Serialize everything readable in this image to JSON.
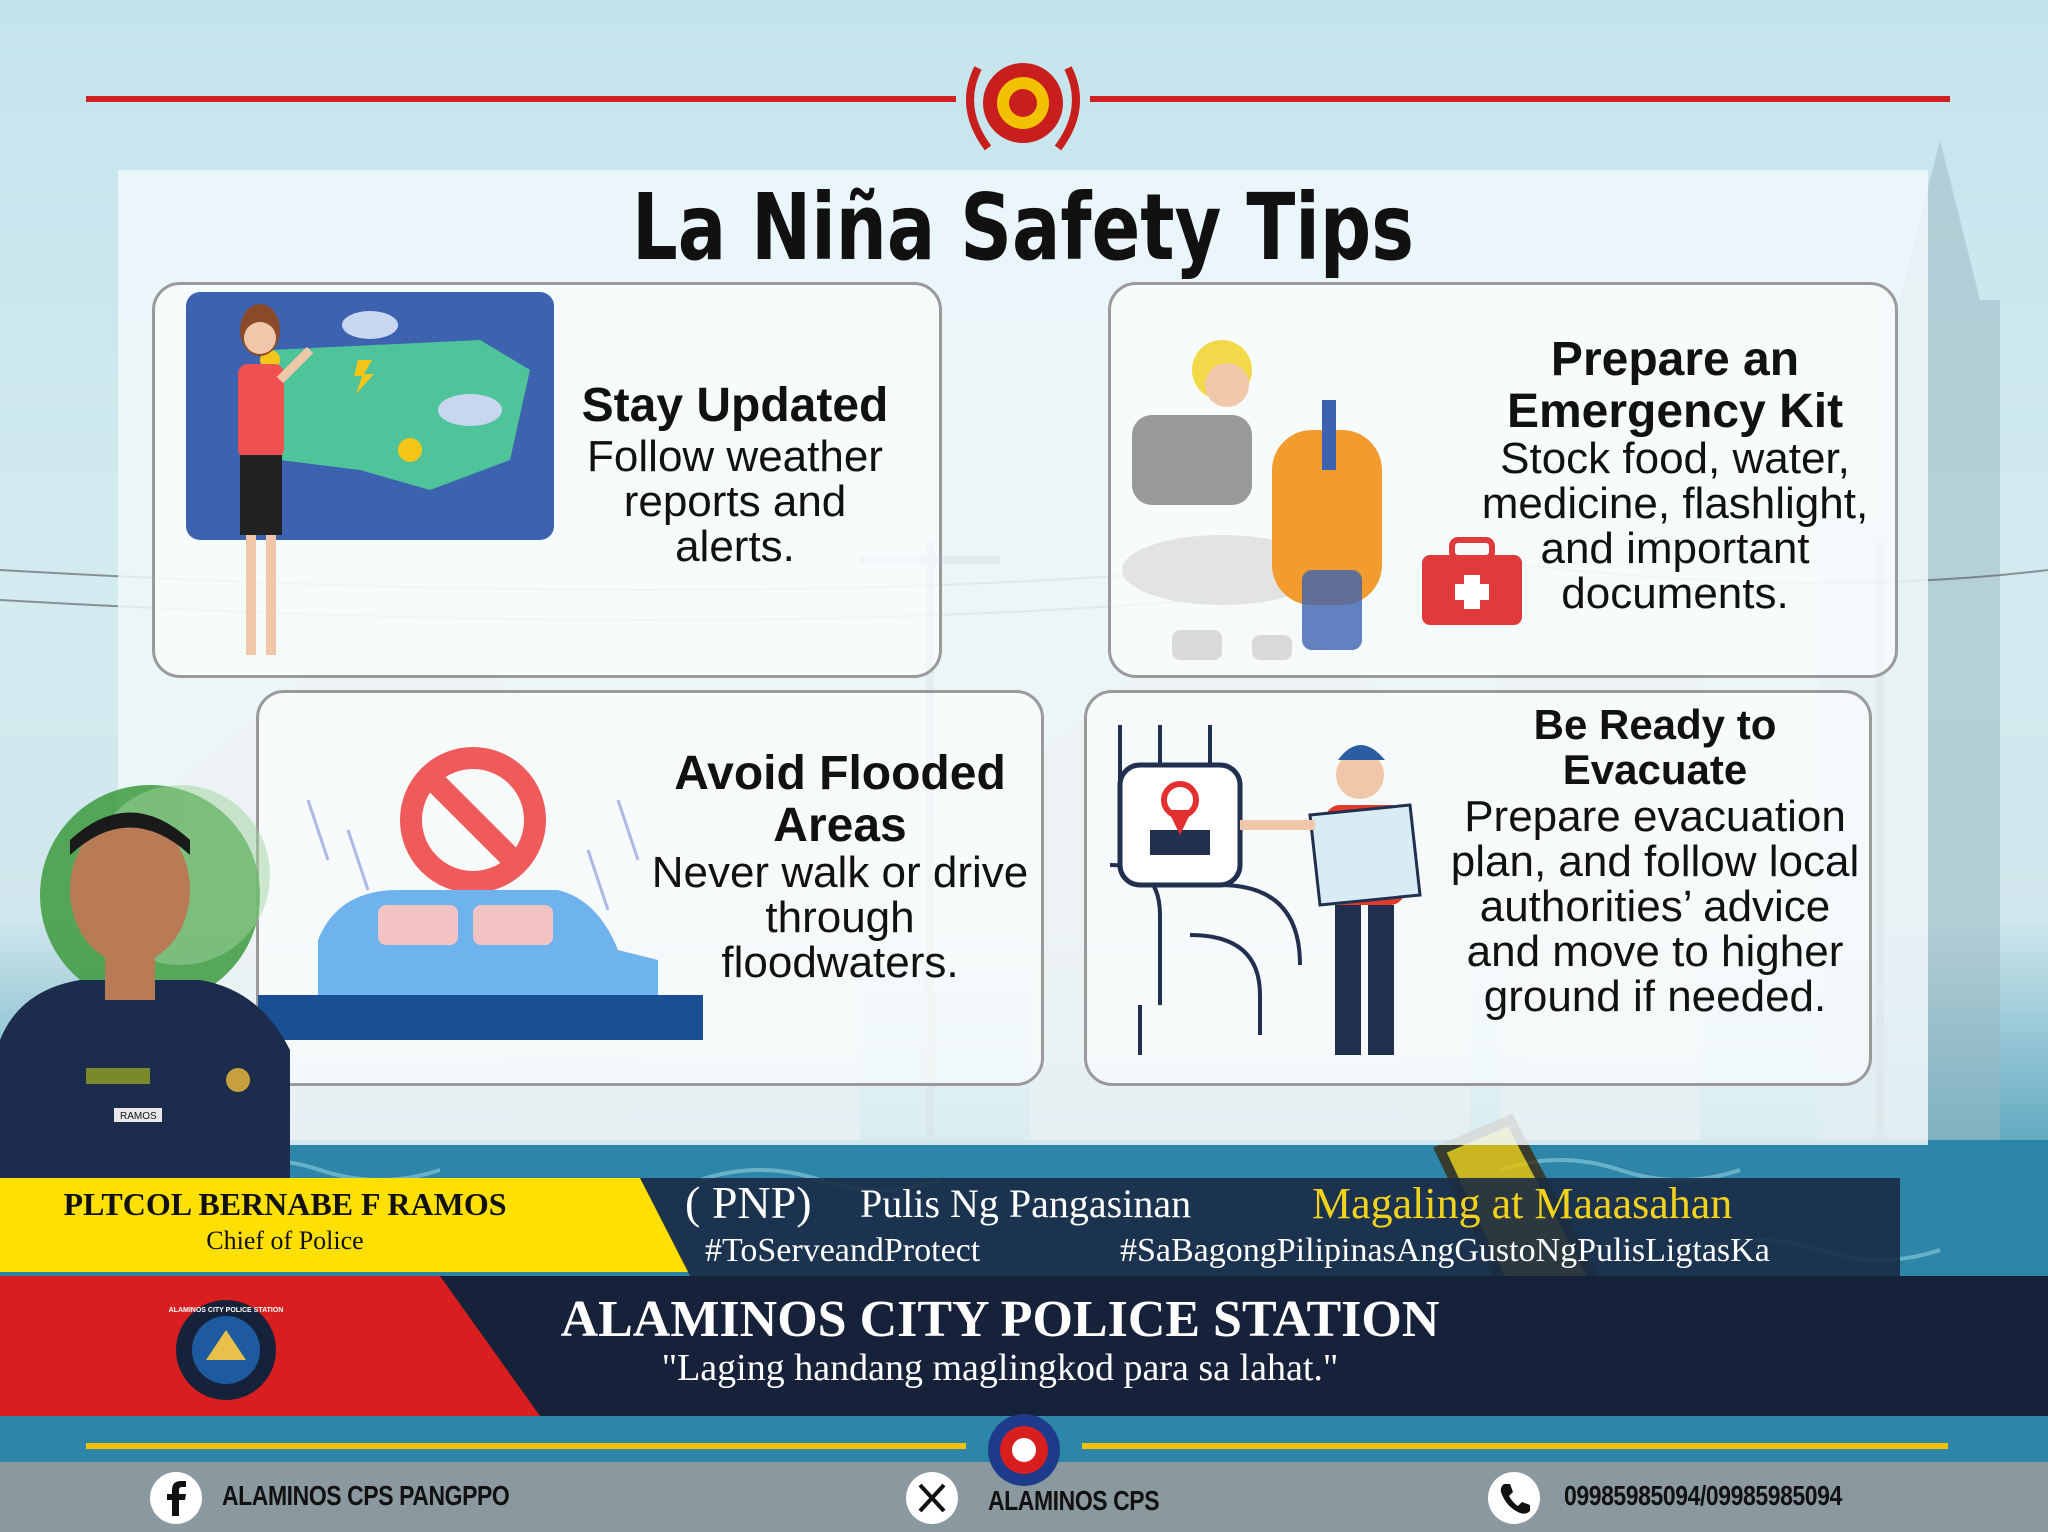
{
  "title": "La Niña Safety Tips",
  "tips": [
    {
      "title": "Stay Updated",
      "body": "Follow weather reports and alerts."
    },
    {
      "title": "Prepare an Emergency Kit",
      "body": "Stock food, water, medicine, flashlight, and important documents."
    },
    {
      "title": "Avoid Flooded Areas",
      "body": "Never walk or drive through floodwaters."
    },
    {
      "title": "Be Ready to Evacuate",
      "body": "Prepare evacuation plan, and follow local authorities’ advice and move to higher ground if needed."
    }
  ],
  "officer": {
    "name": "PLTCOL BERNABE F RAMOS",
    "position": "Chief of Police",
    "nameplate": "RAMOS"
  },
  "slogan": {
    "pnp": "( PNP)",
    "line": "Pulis Ng Pangasinan",
    "motto": "Magaling at Maaasahan",
    "hashtag1": "#ToServeandProtect",
    "hashtag2": "#SaBagongPilipinasAngGustoNgPulisLigtasKa"
  },
  "station": {
    "name": "ALAMINOS CITY POLICE STATION",
    "tagline": "\"Laging handang maglingkod para sa lahat.\"",
    "seal_text": "ALAMINOS CITY POLICE STATION"
  },
  "footer": {
    "facebook": "ALAMINOS CPS PANGPPO",
    "x": "ALAMINOS CPS",
    "phone": "09985985094/09985985094"
  },
  "colors": {
    "red": "#d32020",
    "gold": "#f2c200",
    "navy": "#14213a",
    "teal": "#2f7fa3"
  },
  "icons": [
    "pnp-seal-icon",
    "facebook-icon",
    "x-icon",
    "phone-icon",
    "no-entry-icon",
    "map-pin-icon",
    "first-aid-kit-icon"
  ]
}
